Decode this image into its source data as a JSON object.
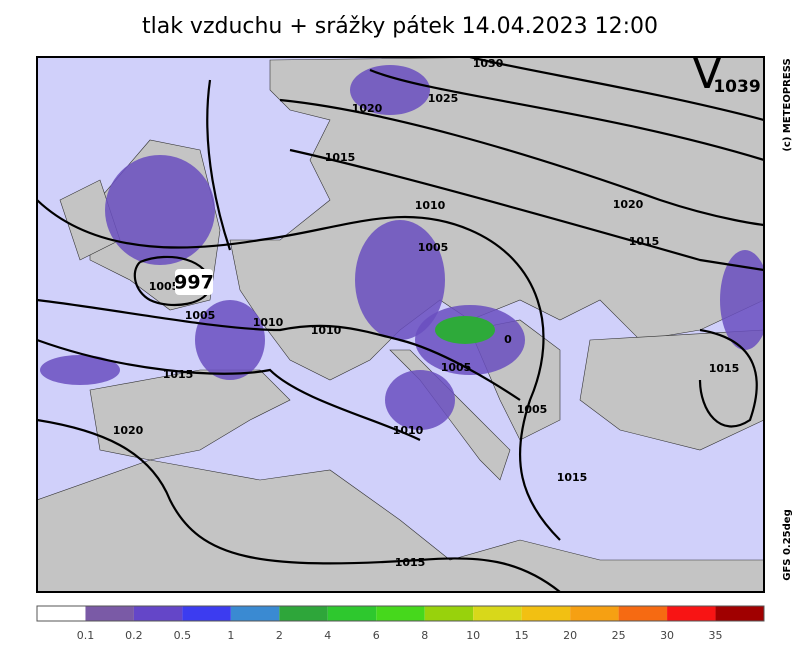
{
  "header": {
    "title": "tlak vzduchu + srážky   pátek 14.04.2023 12:00"
  },
  "side_labels": {
    "copyright": "(c) METEOPRESS",
    "model": "GFS 0.25deg"
  },
  "pressure_centers": [
    {
      "symbol": "V",
      "label": "1039"
    },
    {
      "label": "997"
    }
  ],
  "isobar_labels": [
    "1030",
    "1025",
    "1020",
    "1015",
    "1010",
    "1020",
    "1015",
    "1005",
    "1005",
    "1005",
    "1010",
    "1010",
    "0",
    "1005",
    "1015",
    "1015",
    "1005",
    "1020",
    "1010",
    "1015",
    "1015"
  ],
  "legend": {
    "colors": [
      "#ffffff",
      "#7a5aa6",
      "#6446c8",
      "#3c3cf0",
      "#3a8ad2",
      "#2ea63a",
      "#2ec82e",
      "#46d81c",
      "#98d20c",
      "#d8d81a",
      "#f2c012",
      "#f6a012",
      "#f66a12",
      "#f81414",
      "#a00000"
    ],
    "ticks": [
      "0.1",
      "0.2",
      "0.5",
      "1",
      "2",
      "4",
      "6",
      "8",
      "10",
      "15",
      "20",
      "25",
      "30",
      "35"
    ]
  }
}
